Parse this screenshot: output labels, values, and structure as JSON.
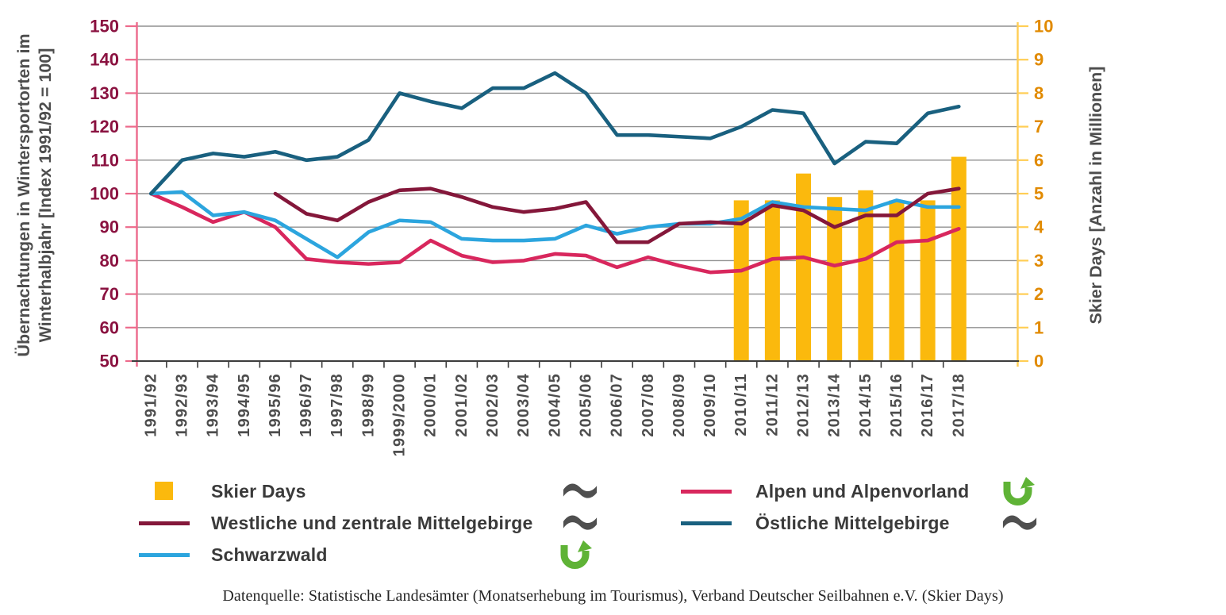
{
  "chart_data": {
    "type": "combo-bar-line",
    "categories": [
      "1991/92",
      "1992/93",
      "1993/94",
      "1994/95",
      "1995/96",
      "1996/97",
      "1997/98",
      "1998/99",
      "1999/2000",
      "2000/01",
      "2001/02",
      "2002/03",
      "2003/04",
      "2004/05",
      "2005/06",
      "2006/07",
      "2007/08",
      "2008/09",
      "2009/10",
      "2010/11",
      "2011/12",
      "2012/13",
      "2013/14",
      "2014/15",
      "2015/16",
      "2016/17",
      "2017/18"
    ],
    "series": [
      {
        "name": "Skier Days",
        "type": "bar",
        "axis": "right",
        "color": "#FBB90D",
        "values": [
          null,
          null,
          null,
          null,
          null,
          null,
          null,
          null,
          null,
          null,
          null,
          null,
          null,
          null,
          null,
          null,
          null,
          null,
          null,
          4.8,
          4.8,
          5.6,
          4.9,
          5.1,
          4.8,
          4.8,
          6.1
        ]
      },
      {
        "name": "Alpen und Alpenvorland",
        "type": "line",
        "axis": "left",
        "color": "#D8275D",
        "values": [
          100,
          96,
          91.5,
          94.5,
          90,
          80.5,
          79.5,
          79,
          79.5,
          86,
          81.5,
          79.5,
          80,
          82,
          81.5,
          78,
          81,
          78.5,
          76.5,
          77,
          80.5,
          81,
          78.5,
          80.5,
          85.5,
          86,
          89.5
        ]
      },
      {
        "name": "Schwarzwald",
        "type": "line",
        "axis": "left",
        "color": "#2CA5DE",
        "values": [
          100,
          100.5,
          93.5,
          94.5,
          92,
          86.5,
          81,
          88.5,
          92,
          91.5,
          86.5,
          86,
          86,
          86.5,
          90.5,
          88,
          90,
          91,
          91,
          92.5,
          97.5,
          96,
          95.5,
          95,
          98,
          96,
          96
        ]
      },
      {
        "name": "Westliche und zentrale Mittelgebirge",
        "type": "line",
        "axis": "left",
        "color": "#84173A",
        "values": [
          null,
          null,
          null,
          null,
          100,
          94,
          92,
          97.5,
          101,
          101.5,
          99,
          96,
          94.5,
          95.5,
          97.5,
          85.5,
          85.5,
          91,
          91.5,
          91,
          96.5,
          95,
          90,
          93.5,
          93.5,
          100,
          101.5
        ]
      },
      {
        "name": "Östliche Mittelgebirge",
        "type": "line",
        "axis": "left",
        "color": "#19607F",
        "values": [
          100,
          110,
          112,
          111,
          112.5,
          110,
          111,
          116,
          130,
          127.5,
          125.5,
          131.5,
          131.5,
          136,
          130,
          117.5,
          117.5,
          117,
          116.5,
          120,
          125,
          124,
          109,
          115.5,
          115,
          124,
          126
        ]
      }
    ],
    "left_axis": {
      "title_line1": "Übernachtungen in Wintersportorten im",
      "title_line2": "Winterhalbjahr [Index 1991/92 = 100]",
      "min": 50,
      "max": 150,
      "step": 10,
      "label_color": "#8A1240",
      "axis_color": "#ED6A8B"
    },
    "right_axis": {
      "title": "Skier Days [Anzahl in Millionen]",
      "min": 0,
      "max": 10,
      "step": 1,
      "label_color": "#E18A00",
      "axis_color": "#FFCE55"
    },
    "grid": true,
    "grid_color": "#909090",
    "x_axis_color": "#3D3D3D",
    "x_label_color": "#4D4D4D",
    "axis_title_color": "#4D4D4D",
    "legend_position": "bottom"
  },
  "legend": {
    "items": [
      {
        "label": "Skier Days",
        "swatch": "square",
        "color": "#FBB90D",
        "trend_icon": "flag"
      },
      {
        "label": "Westliche und zentrale Mittelgebirge",
        "swatch": "line",
        "color": "#84173A",
        "trend_icon": "flag"
      },
      {
        "label": "Schwarzwald",
        "swatch": "line",
        "color": "#2CA5DE",
        "trend_icon": "arrow-up"
      },
      {
        "label": "Alpen und Alpenvorland",
        "swatch": "line",
        "color": "#D8275D",
        "trend_icon": "arrow-up"
      },
      {
        "label": "Östliche Mittelgebirge",
        "swatch": "line",
        "color": "#19607F",
        "trend_icon": "flag"
      }
    ],
    "icon_colors": {
      "flag": "#4F4F4F",
      "arrow": "#5FB336"
    }
  },
  "source": {
    "text": "Datenquelle: Statistische Landesämter  (Monatserhebung im Tourismus), Verband Deutscher Seilbahnen e.V. (Skier Days)"
  }
}
